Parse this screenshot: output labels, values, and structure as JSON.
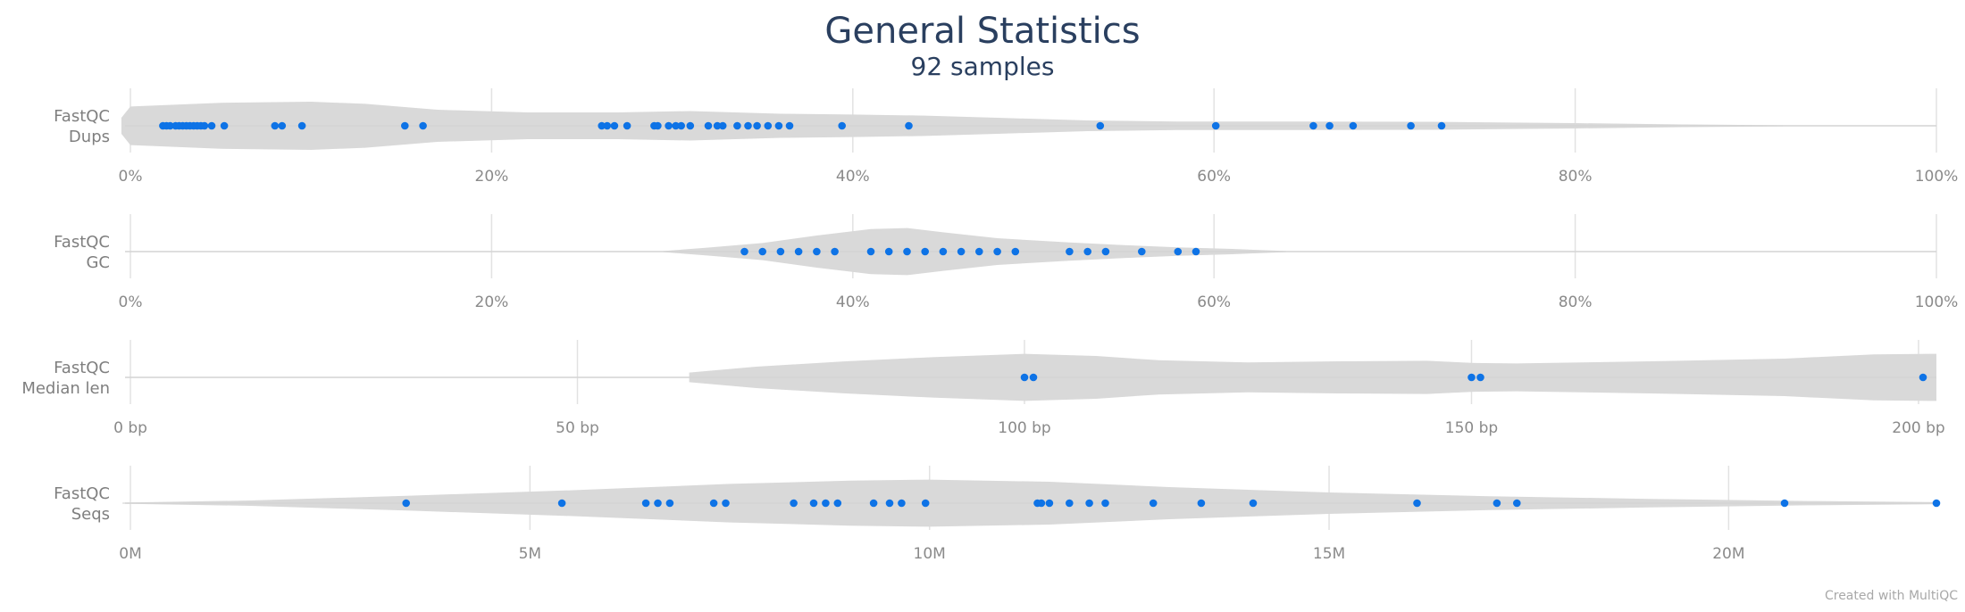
{
  "chart_data": {
    "type": "violin",
    "title": "General Statistics",
    "subtitle": "92 samples",
    "credit": "Created with MultiQC",
    "point_color": "#0e73e6",
    "violin_color": "#d9d9d9",
    "rows": [
      {
        "label_lines": [
          "FastQC",
          "Dups"
        ],
        "xlim": [
          0,
          100
        ],
        "ticks": [
          0,
          20,
          40,
          60,
          80,
          100
        ],
        "tick_labels": [
          "0%",
          "20%",
          "40%",
          "60%",
          "80%",
          "100%"
        ],
        "density": [
          [
            -0.5,
            0.3
          ],
          [
            0,
            0.72
          ],
          [
            5,
            0.86
          ],
          [
            10,
            0.9
          ],
          [
            13,
            0.82
          ],
          [
            17,
            0.6
          ],
          [
            22,
            0.5
          ],
          [
            27,
            0.5
          ],
          [
            31,
            0.55
          ],
          [
            36,
            0.45
          ],
          [
            40,
            0.42
          ],
          [
            44,
            0.38
          ],
          [
            48,
            0.3
          ],
          [
            53,
            0.2
          ],
          [
            58,
            0.16
          ],
          [
            65,
            0.16
          ],
          [
            72,
            0.15
          ],
          [
            80,
            0.1
          ],
          [
            86,
            0.05
          ],
          [
            91.5,
            0.02
          ]
        ],
        "points": [
          1.8,
          2.0,
          2.2,
          2.5,
          2.7,
          2.9,
          3.1,
          3.3,
          3.5,
          3.7,
          3.9,
          4.1,
          4.5,
          5.2,
          8.0,
          8.4,
          9.5,
          15.2,
          16.2,
          26.1,
          26.4,
          26.8,
          27.5,
          29.0,
          29.2,
          29.8,
          30.2,
          30.5,
          31.0,
          32.0,
          32.5,
          32.8,
          33.6,
          34.2,
          34.7,
          35.3,
          35.9,
          36.5,
          39.4,
          43.1,
          53.7,
          60.1,
          65.5,
          66.4,
          67.7,
          70.9,
          72.6
        ]
      },
      {
        "label_lines": [
          "FastQC",
          "GC"
        ],
        "xlim": [
          0,
          100
        ],
        "ticks": [
          0,
          20,
          40,
          60,
          80,
          100
        ],
        "tick_labels": [
          "0%",
          "20%",
          "40%",
          "60%",
          "80%",
          "100%"
        ],
        "density": [
          [
            29.5,
            0.02
          ],
          [
            32,
            0.15
          ],
          [
            35,
            0.32
          ],
          [
            38,
            0.6
          ],
          [
            41,
            0.84
          ],
          [
            43,
            0.88
          ],
          [
            45,
            0.72
          ],
          [
            48,
            0.5
          ],
          [
            52,
            0.34
          ],
          [
            55,
            0.24
          ],
          [
            58,
            0.16
          ],
          [
            61,
            0.1
          ],
          [
            64,
            0.02
          ]
        ],
        "points": [
          34.0,
          35.0,
          36.0,
          37.0,
          38.0,
          39.0,
          41.0,
          42.0,
          43.0,
          44.0,
          45.0,
          46.0,
          47.0,
          48.0,
          49.0,
          52.0,
          53.0,
          54.0,
          56.0,
          58.0,
          59.0
        ]
      },
      {
        "label_lines": [
          "FastQC",
          "Median len"
        ],
        "xlim": [
          0,
          202
        ],
        "ticks": [
          0,
          50,
          100,
          150,
          200
        ],
        "tick_labels": [
          "0 bp",
          "50 bp",
          "100 bp",
          "150 bp",
          "200 bp"
        ],
        "density": [
          [
            62.5,
            0.18
          ],
          [
            70,
            0.4
          ],
          [
            80,
            0.6
          ],
          [
            90,
            0.76
          ],
          [
            100,
            0.88
          ],
          [
            108,
            0.8
          ],
          [
            115,
            0.64
          ],
          [
            125,
            0.56
          ],
          [
            135,
            0.6
          ],
          [
            145,
            0.62
          ],
          [
            150,
            0.54
          ],
          [
            155,
            0.52
          ],
          [
            170,
            0.6
          ],
          [
            185,
            0.7
          ],
          [
            195,
            0.86
          ],
          [
            202,
            0.88
          ]
        ],
        "points": [
          100.0,
          101.0,
          150.0,
          151.0,
          200.5
        ]
      },
      {
        "label_lines": [
          "FastQC",
          "Seqs"
        ],
        "xlim": [
          0,
          22600000
        ],
        "ticks": [
          0,
          5000000,
          10000000,
          15000000,
          20000000
        ],
        "tick_labels": [
          "0M",
          "5M",
          "10M",
          "15M",
          "20M"
        ],
        "density": [
          [
            -100000,
            0.02
          ],
          [
            1500000,
            0.1
          ],
          [
            3500000,
            0.28
          ],
          [
            5500000,
            0.48
          ],
          [
            7500000,
            0.72
          ],
          [
            9000000,
            0.84
          ],
          [
            10000000,
            0.88
          ],
          [
            11500000,
            0.8
          ],
          [
            13000000,
            0.6
          ],
          [
            15000000,
            0.4
          ],
          [
            17000000,
            0.26
          ],
          [
            19000000,
            0.16
          ],
          [
            21000000,
            0.08
          ],
          [
            22600000,
            0.04
          ]
        ],
        "points": [
          3450000,
          5400000,
          6450000,
          6600000,
          6750000,
          7300000,
          7450000,
          8300000,
          8550000,
          8700000,
          8850000,
          9300000,
          9500000,
          9650000,
          9950000,
          11350000,
          11400000,
          11500000,
          11750000,
          12000000,
          12200000,
          12800000,
          13400000,
          14050000,
          16100000,
          17100000,
          17350000,
          20700000,
          22600000
        ]
      }
    ]
  }
}
